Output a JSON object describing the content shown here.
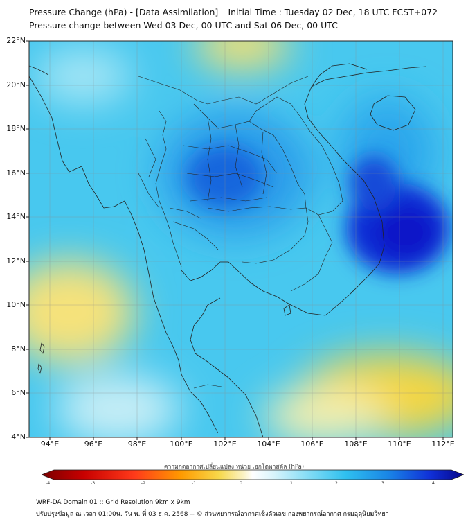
{
  "header": {
    "title_line1": "Pressure Change (hPa) - [Data Assimilation] _ Initial Time : Tuesday 02 Dec, 18 UTC FCST+072",
    "title_line2": "Pressure change between Wed 03 Dec, 00 UTC and Sat 06 Dec, 00 UTC"
  },
  "map": {
    "lat_labels": [
      "22°N",
      "20°N",
      "18°N",
      "16°N",
      "14°N",
      "12°N",
      "10°N",
      "8°N",
      "6°N",
      "4°N"
    ],
    "lon_labels": [
      "94°E",
      "96°E",
      "98°E",
      "100°E",
      "102°E",
      "104°E",
      "106°E",
      "108°E",
      "110°E",
      "112°E"
    ],
    "colors": {
      "ocean_base": "#48c8ef",
      "strong_rise": "#0a1fd6",
      "rise": "#1f8fe8",
      "weak_rise": "#6fd8f3",
      "neutral": "#eef6f0",
      "fall": "#f7df66",
      "strong_fall": "#f4c21a",
      "border": "#222222",
      "grid": "#8a8a8a"
    }
  },
  "colorbar": {
    "title": "ความกดอากาศเปลี่ยนแปลง หน่วย เฮกโตพาสคัล (hPa)",
    "ticks": [
      "-4",
      "-3",
      "-2",
      "-1",
      "0",
      "1",
      "2",
      "3",
      "4"
    ]
  },
  "footer": {
    "line1": "WRF-DA Domain 01 :: Grid Resolution 9km x 9km",
    "line2": "ปรับปรุงข้อมูล ณ เวลา 01:00น. วัน พ. ที่ 03 ธ.ค. 2568 -- © ส่วนพยากรณ์อากาศเชิงตัวเลข กองพยากรณ์อากาศ กรมอุตุนิยมวิทยา"
  }
}
